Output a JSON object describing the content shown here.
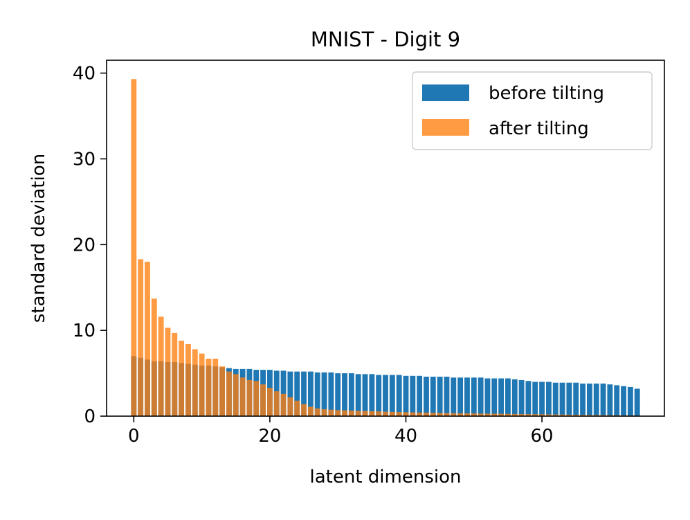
{
  "chart_data": {
    "type": "bar",
    "title": "MNIST - Digit 9",
    "xlabel": "latent dimension",
    "ylabel": "standard deviation",
    "xlim": [
      -4,
      78
    ],
    "ylim": [
      0,
      41.5
    ],
    "xticks": [
      0,
      20,
      40,
      60
    ],
    "yticks": [
      0,
      10,
      20,
      30,
      40
    ],
    "grid": false,
    "legend_position": "top-right",
    "x": [
      0,
      1,
      2,
      3,
      4,
      5,
      6,
      7,
      8,
      9,
      10,
      11,
      12,
      13,
      14,
      15,
      16,
      17,
      18,
      19,
      20,
      21,
      22,
      23,
      24,
      25,
      26,
      27,
      28,
      29,
      30,
      31,
      32,
      33,
      34,
      35,
      36,
      37,
      38,
      39,
      40,
      41,
      42,
      43,
      44,
      45,
      46,
      47,
      48,
      49,
      50,
      51,
      52,
      53,
      54,
      55,
      56,
      57,
      58,
      59,
      60,
      61,
      62,
      63,
      64,
      65,
      66,
      67,
      68,
      69,
      70,
      71,
      72,
      73,
      74
    ],
    "series": [
      {
        "name": "before tilting",
        "color": "#1f77b4",
        "opacity": 1,
        "values": [
          7.0,
          6.8,
          6.6,
          6.4,
          6.4,
          6.3,
          6.3,
          6.2,
          6.1,
          6.0,
          5.9,
          5.9,
          5.8,
          5.7,
          5.6,
          5.5,
          5.5,
          5.5,
          5.4,
          5.4,
          5.4,
          5.3,
          5.3,
          5.2,
          5.2,
          5.2,
          5.2,
          5.1,
          5.1,
          5.1,
          5.0,
          5.0,
          5.0,
          4.9,
          4.9,
          4.9,
          4.8,
          4.8,
          4.8,
          4.8,
          4.7,
          4.7,
          4.7,
          4.6,
          4.6,
          4.6,
          4.6,
          4.5,
          4.5,
          4.5,
          4.5,
          4.5,
          4.4,
          4.4,
          4.4,
          4.4,
          4.3,
          4.2,
          4.1,
          4.0,
          4.0,
          4.0,
          3.9,
          3.9,
          3.9,
          3.9,
          3.8,
          3.8,
          3.8,
          3.8,
          3.7,
          3.6,
          3.5,
          3.4,
          3.2
        ]
      },
      {
        "name": "after tilting",
        "color": "#ff7f0e",
        "opacity": 0.78,
        "values": [
          39.3,
          18.3,
          18.0,
          13.7,
          11.6,
          10.3,
          9.7,
          8.8,
          8.4,
          7.8,
          7.3,
          6.7,
          6.7,
          5.8,
          5.2,
          4.9,
          4.5,
          4.2,
          4.1,
          3.7,
          3.3,
          2.9,
          2.6,
          2.2,
          1.8,
          1.4,
          1.1,
          0.9,
          0.8,
          0.75,
          0.7,
          0.68,
          0.65,
          0.62,
          0.6,
          0.58,
          0.55,
          0.52,
          0.5,
          0.48,
          0.46,
          0.44,
          0.42,
          0.41,
          0.4,
          0.38,
          0.37,
          0.35,
          0.34,
          0.33,
          0.32,
          0.3,
          0.29,
          0.28,
          0.27,
          0.26,
          0.25,
          0.24,
          0.23,
          0.22,
          0.21,
          0.2,
          0.19,
          0.18,
          0.17,
          0.16,
          0.15,
          0.14,
          0.13,
          0.12,
          0.11,
          0.1,
          0.09,
          0.08,
          0.07
        ]
      }
    ]
  }
}
